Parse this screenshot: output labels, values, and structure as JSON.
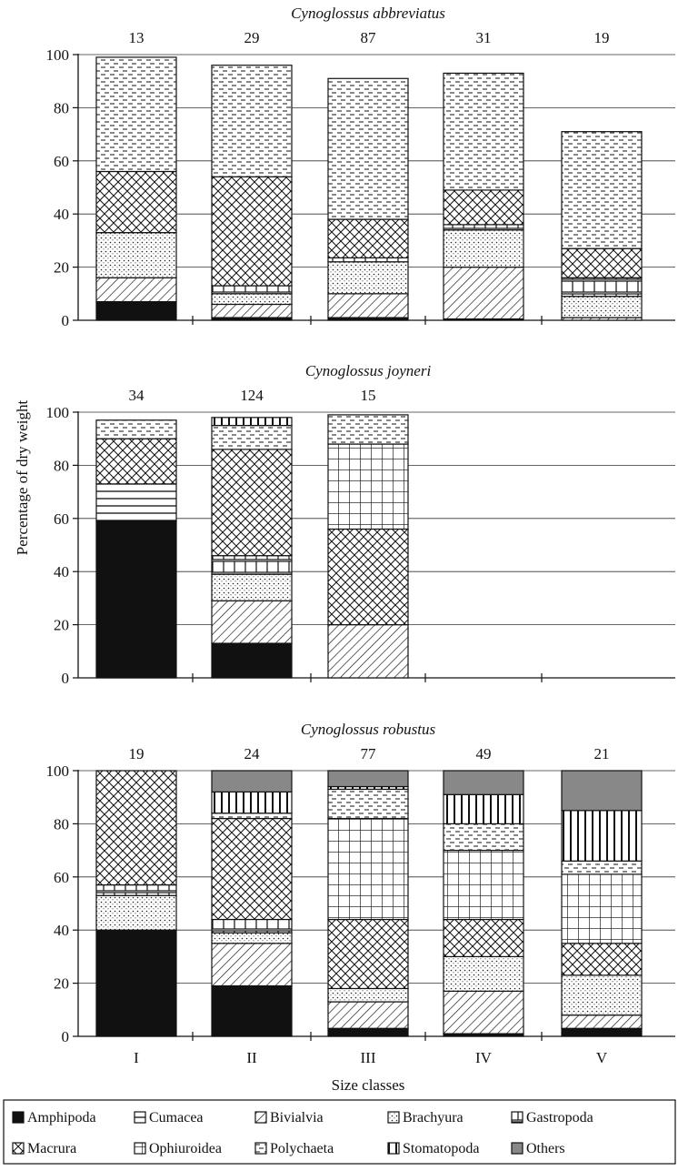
{
  "labels": {
    "ylabel": "Percentage of dry weight",
    "xlabel": "Size classes"
  },
  "colors": {
    "Amphipoda": "#111111",
    "Cumacea": "#ffffff",
    "Bivialvia": "#ffffff",
    "Brachyura": "#ffffff",
    "Gastropoda": "#ffffff",
    "Macrura": "#ffffff",
    "Ophiuroidea": "#ffffff",
    "Polychaeta": "#ffffff",
    "Stomatopoda": "#ffffff",
    "Others": "#888888"
  },
  "legend": [
    {
      "key": "Amphipoda",
      "label": "Amphipoda",
      "pattern": "solid-black"
    },
    {
      "key": "Cumacea",
      "label": "Cumacea",
      "pattern": "horizontal-lines"
    },
    {
      "key": "Bivialvia",
      "label": "Bivialvia",
      "pattern": "diagonal-hatch"
    },
    {
      "key": "Brachyura",
      "label": "Brachyura",
      "pattern": "dots"
    },
    {
      "key": "Gastropoda",
      "label": "Gastropoda",
      "pattern": "vertical-ticks"
    },
    {
      "key": "Macrura",
      "label": "Macrura",
      "pattern": "crosshatch"
    },
    {
      "key": "Ophiuroidea",
      "label": "Ophiuroidea",
      "pattern": "grid"
    },
    {
      "key": "Polychaeta",
      "label": "Polychaeta",
      "pattern": "dashes"
    },
    {
      "key": "Stomatopoda",
      "label": "Stomatopoda",
      "pattern": "vertical-lines"
    },
    {
      "key": "Others",
      "label": "Others",
      "pattern": "solid-grey"
    }
  ],
  "chart_data": [
    {
      "type": "bar",
      "stacked": true,
      "title": "Cynoglossus abbreviatus",
      "categories": [
        "I",
        "II",
        "III",
        "IV",
        "V"
      ],
      "n": [
        "13",
        "29",
        "87",
        "31",
        "19"
      ],
      "ylim": [
        0,
        100
      ],
      "yticks": [
        "0",
        "20",
        "40",
        "60",
        "80",
        "100"
      ],
      "xticks_shown": false,
      "grid": true,
      "series": [
        {
          "name": "Amphipoda",
          "values": [
            7,
            1,
            1,
            0.5,
            0
          ]
        },
        {
          "name": "Cumacea",
          "values": [
            0,
            0,
            0,
            0,
            0
          ]
        },
        {
          "name": "Bivialvia",
          "values": [
            9,
            5,
            9,
            19.5,
            1
          ]
        },
        {
          "name": "Brachyura",
          "values": [
            17,
            4,
            12,
            14,
            8
          ]
        },
        {
          "name": "Gastropoda",
          "values": [
            0,
            3,
            1.5,
            2,
            7
          ]
        },
        {
          "name": "Macrura",
          "values": [
            23,
            41,
            14.5,
            13,
            11
          ]
        },
        {
          "name": "Ophiuroidea",
          "values": [
            0,
            0,
            0,
            0,
            0
          ]
        },
        {
          "name": "Polychaeta",
          "values": [
            43,
            42,
            53,
            44,
            44
          ]
        },
        {
          "name": "Stomatopoda",
          "values": [
            0,
            0,
            0,
            0,
            0
          ]
        },
        {
          "name": "Others",
          "values": [
            0,
            0,
            0,
            0,
            0
          ]
        }
      ]
    },
    {
      "type": "bar",
      "stacked": true,
      "title": "Cynoglossus joyneri",
      "categories": [
        "I",
        "II",
        "III",
        "IV",
        "V"
      ],
      "n": [
        "34",
        "124",
        "15",
        "",
        ""
      ],
      "ylim": [
        0,
        100
      ],
      "yticks": [
        "0",
        "20",
        "40",
        "60",
        "80",
        "100"
      ],
      "xticks_shown": false,
      "grid": true,
      "series": [
        {
          "name": "Amphipoda",
          "values": [
            59,
            13,
            0,
            0,
            0
          ]
        },
        {
          "name": "Cumacea",
          "values": [
            14,
            0,
            0,
            0,
            0
          ]
        },
        {
          "name": "Bivialvia",
          "values": [
            0,
            16,
            20,
            0,
            0
          ]
        },
        {
          "name": "Brachyura",
          "values": [
            0,
            10,
            0,
            0,
            0
          ]
        },
        {
          "name": "Gastropoda",
          "values": [
            0,
            7,
            0,
            0,
            0
          ]
        },
        {
          "name": "Macrura",
          "values": [
            17,
            40,
            36,
            0,
            0
          ]
        },
        {
          "name": "Ophiuroidea",
          "values": [
            0,
            0,
            32,
            0,
            0
          ]
        },
        {
          "name": "Polychaeta",
          "values": [
            7,
            9,
            11,
            0,
            0
          ]
        },
        {
          "name": "Stomatopoda",
          "values": [
            0,
            3,
            0,
            0,
            0
          ]
        },
        {
          "name": "Others",
          "values": [
            0,
            0,
            0,
            0,
            0
          ]
        }
      ]
    },
    {
      "type": "bar",
      "stacked": true,
      "title": "Cynoglossus robustus",
      "categories": [
        "I",
        "II",
        "III",
        "IV",
        "V"
      ],
      "n": [
        "19",
        "24",
        "77",
        "49",
        "21"
      ],
      "ylim": [
        0,
        100
      ],
      "yticks": [
        "0",
        "20",
        "40",
        "60",
        "80",
        "100"
      ],
      "xticks_shown": true,
      "grid": true,
      "series": [
        {
          "name": "Amphipoda",
          "values": [
            40,
            19,
            3,
            1,
            3
          ]
        },
        {
          "name": "Cumacea",
          "values": [
            0,
            0,
            0,
            0,
            0
          ]
        },
        {
          "name": "Bivialvia",
          "values": [
            0,
            16,
            10,
            16,
            5
          ]
        },
        {
          "name": "Brachyura",
          "values": [
            13,
            4,
            5,
            13,
            15
          ]
        },
        {
          "name": "Gastropoda",
          "values": [
            4,
            5,
            0,
            0,
            0
          ]
        },
        {
          "name": "Macrura",
          "values": [
            43,
            38,
            26,
            14,
            12
          ]
        },
        {
          "name": "Ophiuroidea",
          "values": [
            0,
            0,
            38,
            26,
            26
          ]
        },
        {
          "name": "Polychaeta",
          "values": [
            0,
            2,
            11,
            10,
            5
          ]
        },
        {
          "name": "Stomatopoda",
          "values": [
            0,
            8,
            1,
            11,
            19
          ]
        },
        {
          "name": "Others",
          "values": [
            0,
            8,
            6,
            9,
            15
          ]
        }
      ]
    }
  ]
}
